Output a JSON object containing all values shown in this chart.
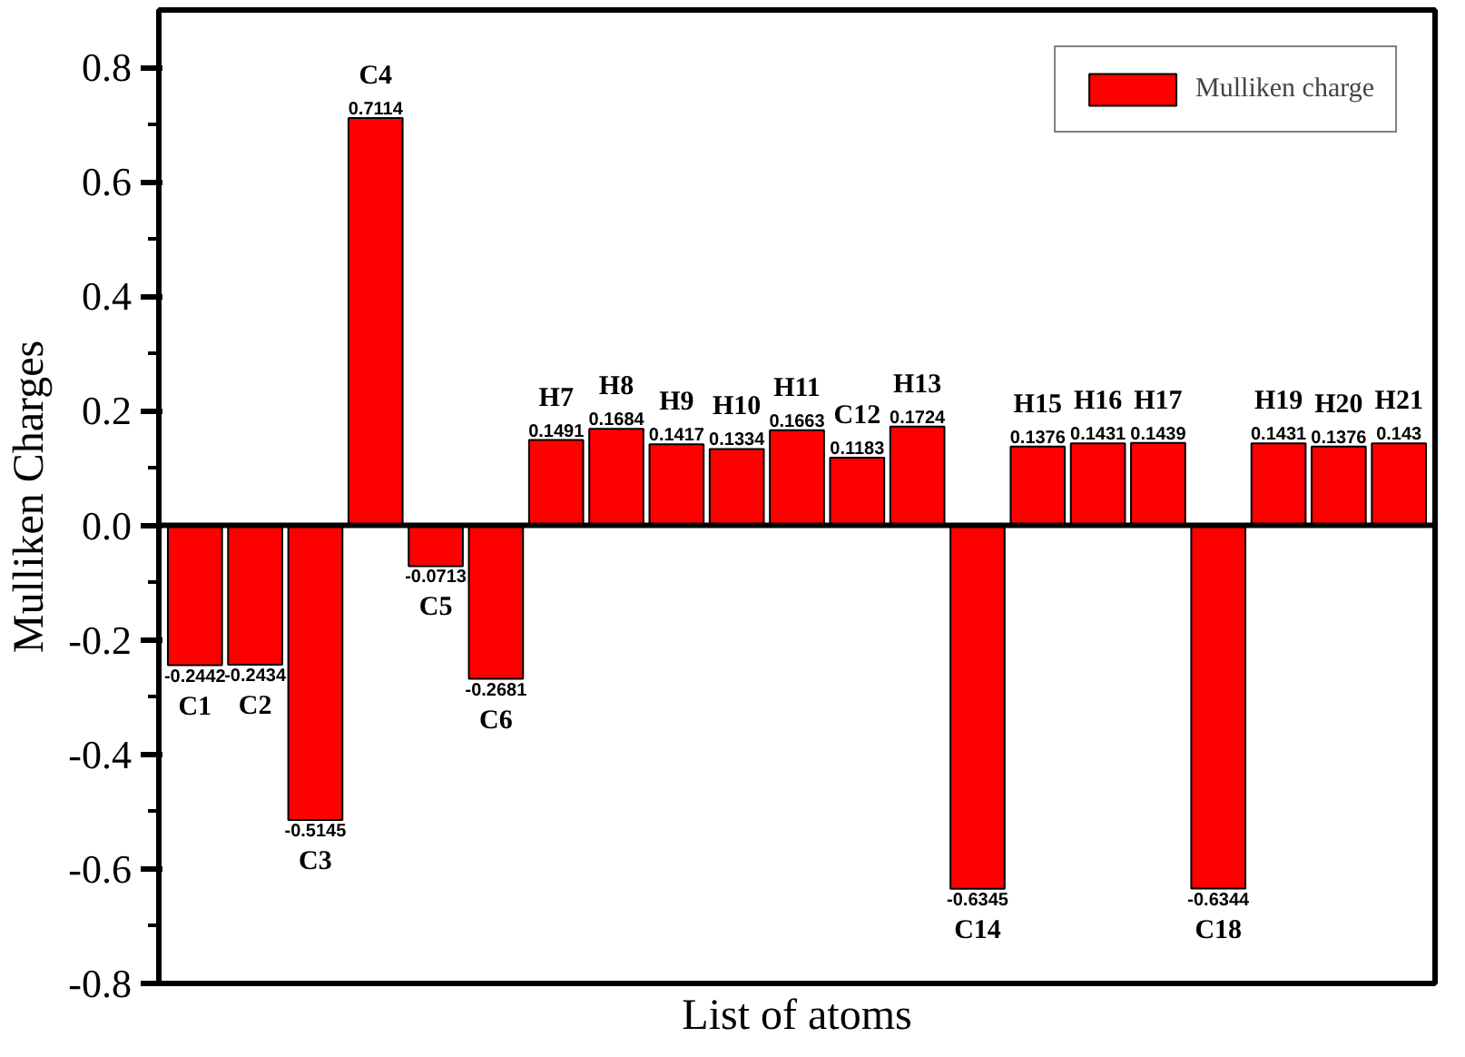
{
  "chart_data": {
    "type": "bar",
    "xlabel": "List of atoms",
    "ylabel": "Mulliken Charges",
    "categories": [
      "C1",
      "C2",
      "C3",
      "C4",
      "C5",
      "C6",
      "H7",
      "H8",
      "H9",
      "H10",
      "H11",
      "C12",
      "H13",
      "C14",
      "H15",
      "H16",
      "H17",
      "C18",
      "H19",
      "H20",
      "H21"
    ],
    "series": [
      {
        "name": "Mulliken charge",
        "color": "#ff0000",
        "values": [
          -0.2442,
          -0.2434,
          -0.5145,
          0.7114,
          -0.0713,
          -0.2681,
          0.1491,
          0.1684,
          0.1417,
          0.1334,
          0.1663,
          0.1183,
          0.1724,
          -0.6345,
          0.1376,
          0.1431,
          0.1439,
          -0.6344,
          0.1431,
          0.1376,
          0.143
        ],
        "value_labels": [
          "-0.2442",
          "-0.2434",
          "-0.5145",
          "0.7114",
          "-0.0713",
          "-0.2681",
          "0.1491",
          "0.1684",
          "0.1417",
          "0.1334",
          "0.1663",
          "0.1183",
          "0.1724",
          "-0.6345",
          "0.1376",
          "0.1431",
          "0.1439",
          "-0.6344",
          "0.1431",
          "0.1376",
          "0.143"
        ]
      }
    ],
    "ylim": [
      -0.8,
      0.9
    ],
    "yticks": [
      {
        "value": -0.8,
        "label": "-0.8"
      },
      {
        "value": -0.6,
        "label": "-0.6"
      },
      {
        "value": -0.4,
        "label": "-0.4"
      },
      {
        "value": -0.2,
        "label": "-0.2"
      },
      {
        "value": 0,
        "label": "0.0"
      },
      {
        "value": 0.2,
        "label": "0.2"
      },
      {
        "value": 0.4,
        "label": "0.4"
      },
      {
        "value": 0.6,
        "label": "0.6"
      },
      {
        "value": 0.8,
        "label": "0.8"
      }
    ],
    "tick_labels": "y",
    "legend": "top right"
  }
}
